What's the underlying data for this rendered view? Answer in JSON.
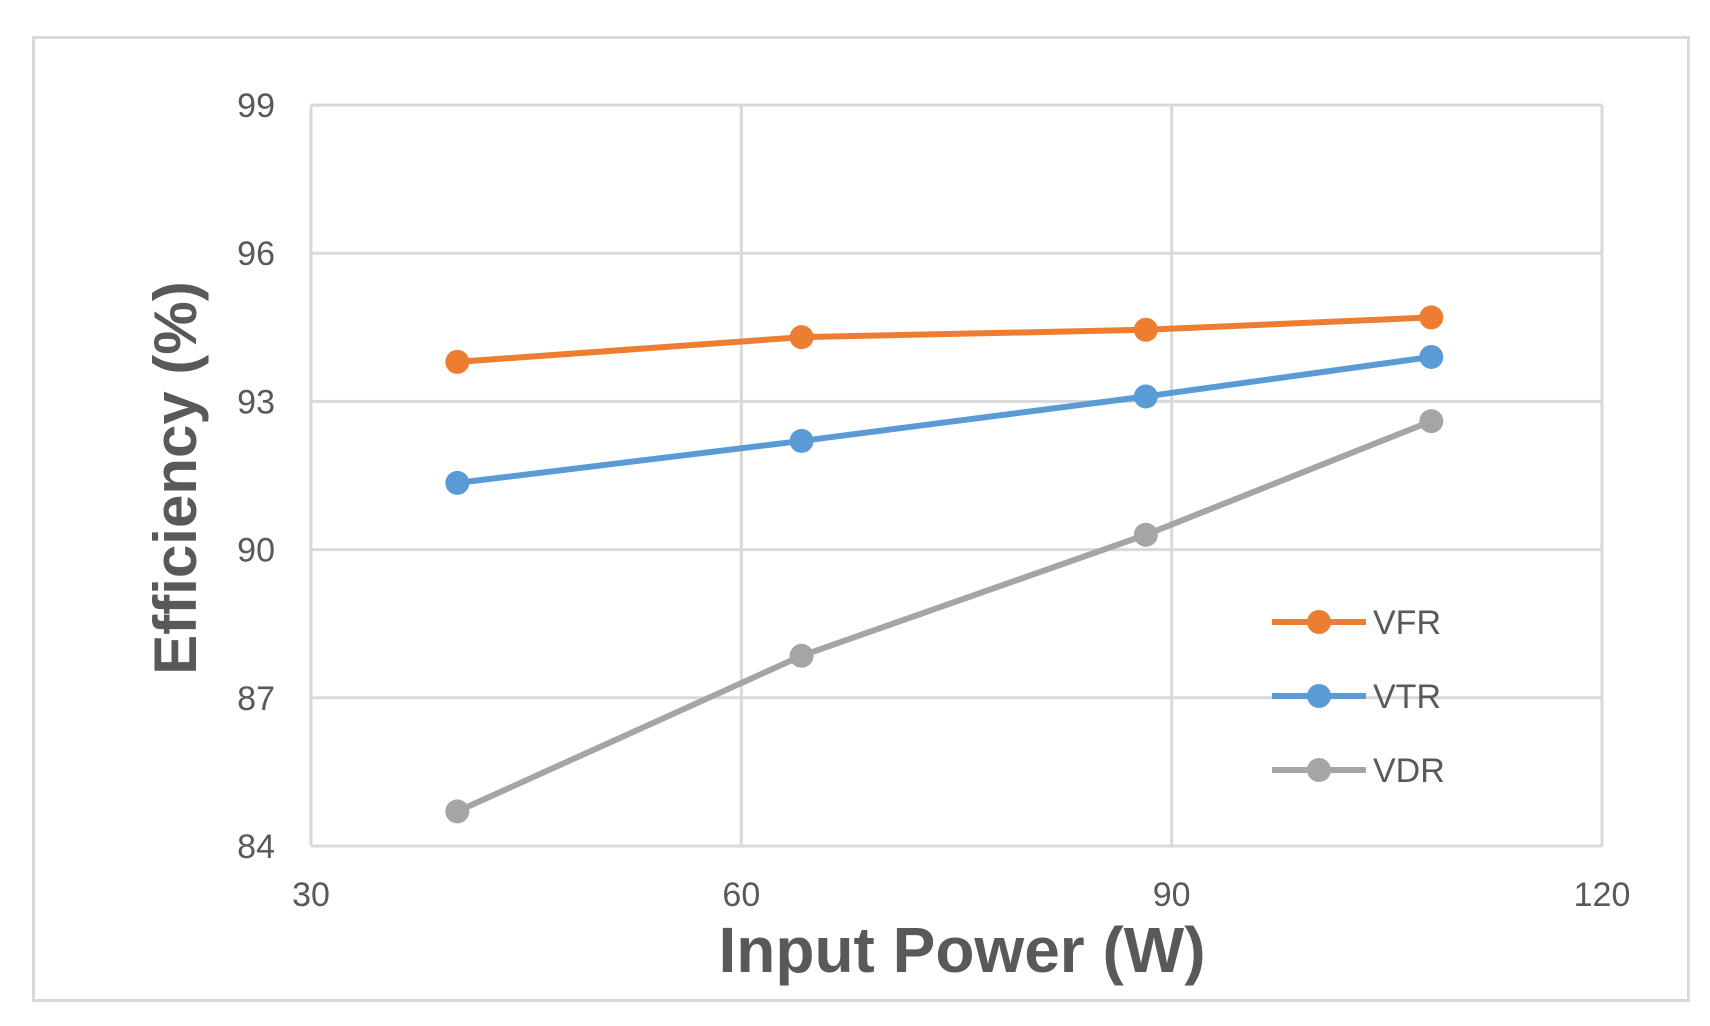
{
  "chart_data": {
    "type": "line",
    "title": "",
    "xlabel": "Input Power (W)",
    "ylabel": "Efficiency (%)",
    "xlim": [
      30,
      120
    ],
    "ylim": [
      84,
      99
    ],
    "xticks": [
      30,
      60,
      90,
      120
    ],
    "yticks": [
      84,
      87,
      90,
      93,
      96,
      99
    ],
    "grid": true,
    "legend_position": "lower-right",
    "series": [
      {
        "name": "VFR",
        "color": "#ed7d31",
        "points": [
          [
            40.2,
            93.8
          ],
          [
            64.2,
            94.3
          ],
          [
            88.2,
            94.45
          ],
          [
            108.1,
            94.7
          ]
        ]
      },
      {
        "name": "VTR",
        "color": "#5b9bd5",
        "points": [
          [
            40.2,
            91.35
          ],
          [
            64.2,
            92.2
          ],
          [
            88.2,
            93.1
          ],
          [
            108.1,
            93.9
          ]
        ]
      },
      {
        "name": "VDR",
        "color": "#a5a5a5",
        "points": [
          [
            40.2,
            84.7
          ],
          [
            64.2,
            87.85
          ],
          [
            88.2,
            90.3
          ],
          [
            108.1,
            92.6
          ]
        ]
      }
    ]
  }
}
